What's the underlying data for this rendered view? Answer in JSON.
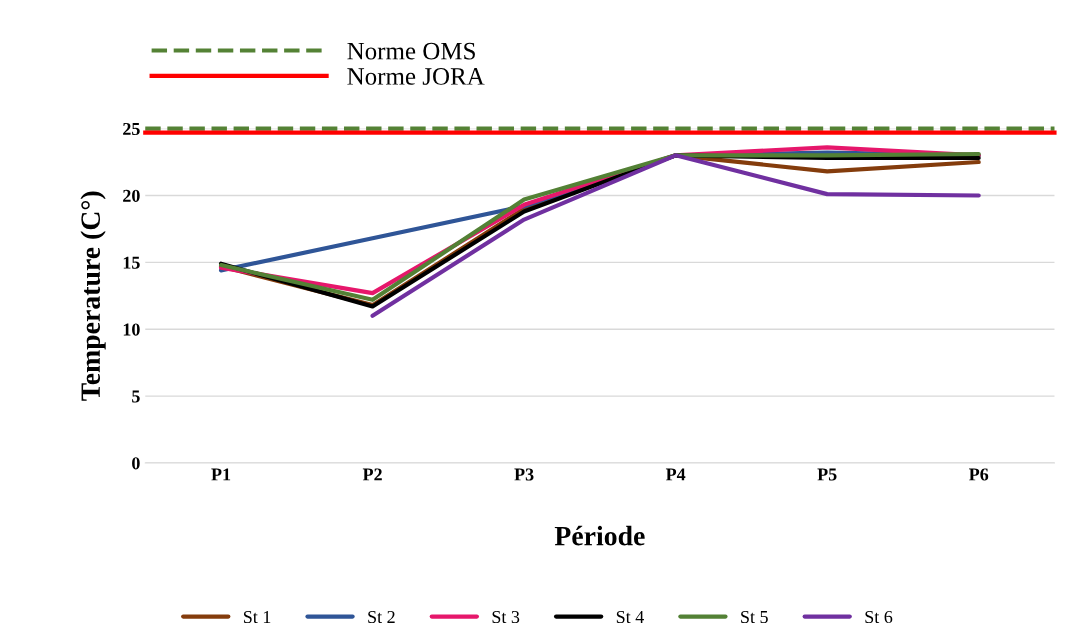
{
  "chart_data": {
    "type": "line",
    "xlabel": "Période",
    "ylabel": "Temperature (C°)",
    "categories": [
      "P1",
      "P2",
      "P3",
      "P4",
      "P5",
      "P6"
    ],
    "series": [
      {
        "name": "St 1",
        "color": "#843c0c",
        "values": [
          14.7,
          11.8,
          19.0,
          23.0,
          21.8,
          22.5
        ]
      },
      {
        "name": "St 2",
        "color": "#2f5597",
        "values": [
          14.4,
          16.8,
          19.2,
          23.0,
          23.2,
          23.0
        ]
      },
      {
        "name": "St 3",
        "color": "#e6176b",
        "values": [
          14.6,
          12.7,
          19.3,
          23.0,
          23.6,
          23.0
        ]
      },
      {
        "name": "St 4",
        "color": "#000000",
        "values": [
          14.9,
          11.7,
          18.8,
          23.0,
          22.8,
          22.8
        ]
      },
      {
        "name": "St 5",
        "color": "#538135",
        "values": [
          14.8,
          12.2,
          19.7,
          23.0,
          23.0,
          23.1
        ]
      },
      {
        "name": "St 6",
        "color": "#7030a0",
        "values": [
          null,
          11.0,
          18.2,
          23.0,
          20.1,
          20.0
        ]
      }
    ],
    "ylim": [
      0,
      25
    ],
    "yticks": [
      0,
      5,
      10,
      15,
      20,
      25
    ],
    "ref_lines": [
      {
        "axis": "y",
        "value": 25,
        "label": "Norme OMS",
        "color": "#548235",
        "line_style": "dashed"
      },
      {
        "axis": "y",
        "value": 24.7,
        "label": "Norme JORA",
        "color": "#ff0000",
        "line_style": "solid"
      }
    ],
    "grid": "y",
    "legend": "bottom",
    "marker": "none",
    "line_style": "solid"
  }
}
